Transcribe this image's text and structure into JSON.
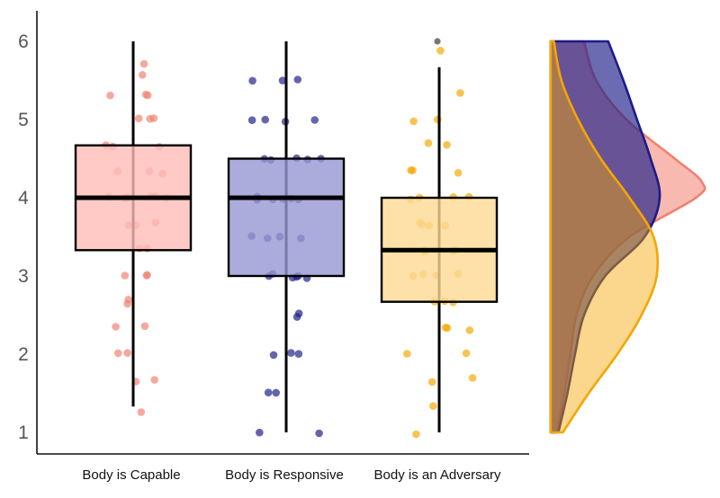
{
  "chart_data": {
    "type": "box",
    "categories": [
      "Body is Capable",
      "Body is Responsive",
      "Body is an Adversary"
    ],
    "ylim": [
      0.9,
      6.4
    ],
    "yticks": [
      1,
      2,
      3,
      4,
      5,
      6
    ],
    "title": "",
    "xlabel": "",
    "ylabel": "",
    "grid": false,
    "legend": "none",
    "series": [
      {
        "name": "Body is Capable",
        "color": "#f08070",
        "fill": "#ffbcb7",
        "box": {
          "whisker_low": 1.33,
          "q1": 3.33,
          "median": 4.0,
          "q3": 4.67,
          "whisker_high": 6.0
        },
        "outliers": [],
        "points": [
          5.7,
          5.6,
          5.33,
          5.33,
          5.33,
          5.0,
          5.0,
          5.0,
          4.67,
          4.67,
          4.67,
          4.33,
          4.33,
          4.33,
          4.0,
          4.0,
          4.0,
          4.0,
          4.0,
          4.0,
          3.67,
          3.67,
          3.67,
          3.33,
          3.33,
          3.0,
          3.0,
          3.0,
          2.67,
          2.67,
          2.33,
          2.33,
          2.0,
          2.0,
          1.67,
          1.67,
          1.27
        ],
        "density": [
          [
            1.0,
            0.04
          ],
          [
            1.5,
            0.09
          ],
          [
            2.0,
            0.13
          ],
          [
            2.5,
            0.17
          ],
          [
            3.0,
            0.28
          ],
          [
            3.5,
            0.52
          ],
          [
            4.0,
            0.96
          ],
          [
            4.2,
            1.0
          ],
          [
            4.5,
            0.82
          ],
          [
            5.0,
            0.5
          ],
          [
            5.5,
            0.3
          ],
          [
            6.0,
            0.22
          ]
        ]
      },
      {
        "name": "Body is Responsive",
        "color": "#1c1c88",
        "fill": "#9797d3",
        "box": {
          "whisker_low": 1.0,
          "q1": 3.0,
          "median": 4.0,
          "q3": 4.5,
          "whisker_high": 6.0
        },
        "outliers": [],
        "points": [
          5.5,
          5.5,
          5.5,
          5.0,
          5.0,
          5.0,
          5.0,
          4.5,
          4.5,
          4.5,
          4.5,
          4.5,
          4.0,
          4.0,
          4.0,
          4.0,
          4.0,
          4.0,
          3.5,
          3.5,
          3.5,
          3.5,
          3.0,
          3.0,
          3.0,
          3.0,
          3.0,
          3.0,
          2.5,
          2.5,
          2.0,
          2.0,
          2.0,
          1.5,
          1.5,
          1.0,
          1.0
        ],
        "density": [
          [
            1.0,
            0.05
          ],
          [
            1.5,
            0.11
          ],
          [
            2.0,
            0.16
          ],
          [
            2.5,
            0.22
          ],
          [
            3.0,
            0.36
          ],
          [
            3.5,
            0.62
          ],
          [
            4.0,
            0.72
          ],
          [
            4.5,
            0.66
          ],
          [
            5.0,
            0.57
          ],
          [
            5.5,
            0.48
          ],
          [
            6.0,
            0.38
          ]
        ]
      },
      {
        "name": "Body is an Adversary",
        "color": "#f5a600",
        "fill": "#fcd993",
        "box": {
          "whisker_low": 1.0,
          "q1": 2.67,
          "median": 3.33,
          "q3": 4.0,
          "whisker_high": 5.67
        },
        "outliers": [
          6.0
        ],
        "points": [
          5.9,
          5.33,
          5.0,
          5.0,
          4.67,
          4.67,
          4.33,
          4.33,
          4.33,
          4.0,
          4.0,
          4.0,
          4.0,
          3.67,
          3.67,
          3.67,
          3.67,
          3.33,
          3.33,
          3.33,
          3.33,
          3.0,
          3.0,
          3.0,
          3.0,
          2.67,
          2.67,
          2.67,
          2.33,
          2.33,
          2.33,
          2.0,
          2.0,
          1.67,
          1.67,
          1.33,
          1.0
        ],
        "density": [
          [
            1.0,
            0.08
          ],
          [
            1.5,
            0.25
          ],
          [
            2.0,
            0.44
          ],
          [
            2.5,
            0.6
          ],
          [
            3.0,
            0.7
          ],
          [
            3.5,
            0.68
          ],
          [
            4.0,
            0.52
          ],
          [
            4.5,
            0.33
          ],
          [
            5.0,
            0.18
          ],
          [
            5.5,
            0.07
          ],
          [
            6.0,
            0.02
          ]
        ]
      }
    ]
  }
}
